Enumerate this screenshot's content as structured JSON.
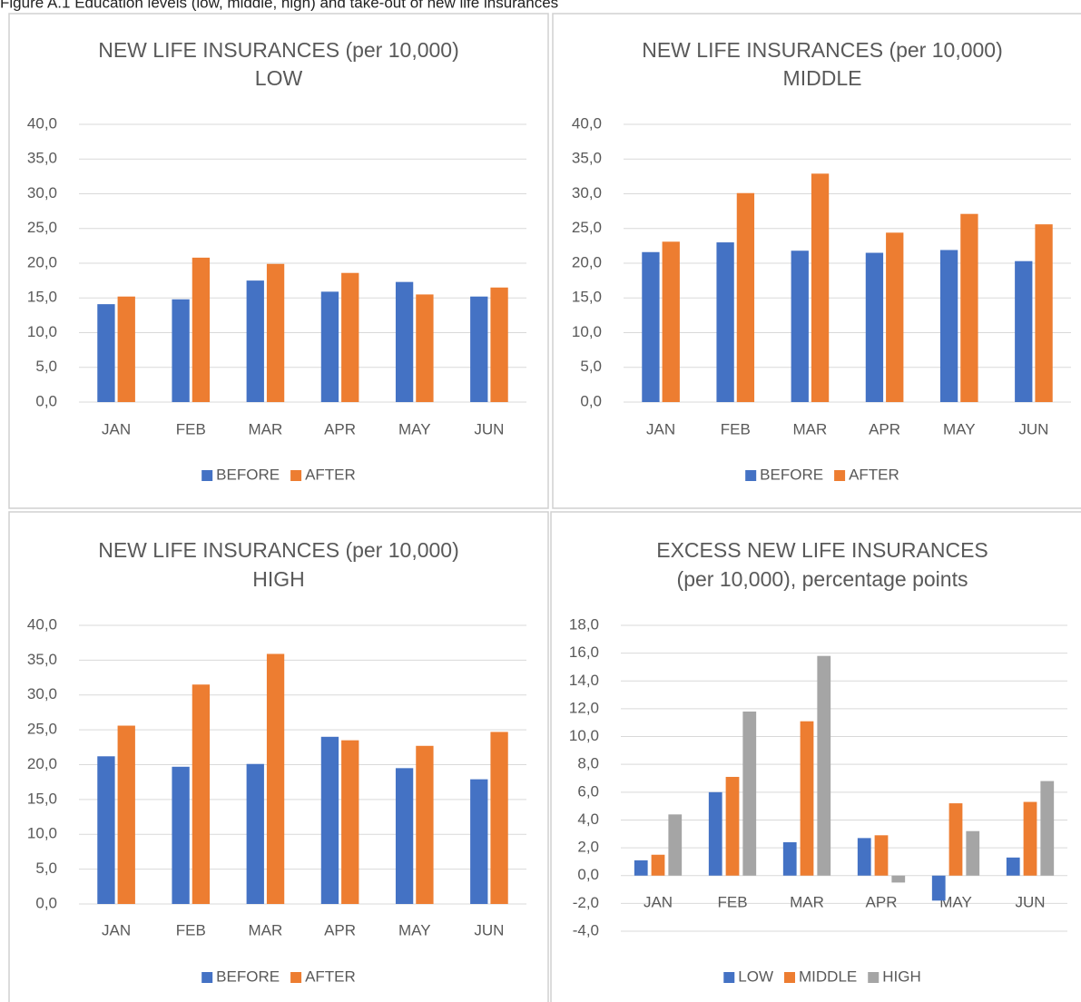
{
  "caption": "Figure A.1 Education levels (low, middle, high) and take-out of new life insurances",
  "chart_data": [
    {
      "type": "bar",
      "title": [
        "NEW LIFE INSURANCES (per 10,000)",
        "LOW"
      ],
      "categories": [
        "JAN",
        "FEB",
        "MAR",
        "APR",
        "MAY",
        "JUN"
      ],
      "series": [
        {
          "name": "BEFORE",
          "color": "#4472c4",
          "values": [
            14.1,
            14.8,
            17.5,
            15.9,
            17.3,
            15.2
          ]
        },
        {
          "name": "AFTER",
          "color": "#ed7d31",
          "values": [
            15.2,
            20.8,
            19.9,
            18.6,
            15.5,
            16.5
          ]
        }
      ],
      "ylim": [
        0,
        40
      ],
      "yticks": [
        {
          "value": 0,
          "label": "0,0"
        },
        {
          "value": 5,
          "label": "5,0"
        },
        {
          "value": 10,
          "label": "10,0"
        },
        {
          "value": 15,
          "label": "15,0"
        },
        {
          "value": 20,
          "label": "20,0"
        },
        {
          "value": 25,
          "label": "25,0"
        },
        {
          "value": 30,
          "label": "30,0"
        },
        {
          "value": 35,
          "label": "35,0"
        },
        {
          "value": 40,
          "label": "40,0"
        }
      ],
      "grid": true,
      "legend": "bottom"
    },
    {
      "type": "bar",
      "title": [
        "NEW LIFE INSURANCES (per 10,000)",
        "MIDDLE"
      ],
      "categories": [
        "JAN",
        "FEB",
        "MAR",
        "APR",
        "MAY",
        "JUN"
      ],
      "series": [
        {
          "name": "BEFORE",
          "color": "#4472c4",
          "values": [
            21.6,
            23.0,
            21.8,
            21.5,
            21.9,
            20.3
          ]
        },
        {
          "name": "AFTER",
          "color": "#ed7d31",
          "values": [
            23.1,
            30.1,
            32.9,
            24.4,
            27.1,
            25.6
          ]
        }
      ],
      "ylim": [
        0,
        40
      ],
      "yticks": [
        {
          "value": 0,
          "label": "0,0"
        },
        {
          "value": 5,
          "label": "5,0"
        },
        {
          "value": 10,
          "label": "10,0"
        },
        {
          "value": 15,
          "label": "15,0"
        },
        {
          "value": 20,
          "label": "20,0"
        },
        {
          "value": 25,
          "label": "25,0"
        },
        {
          "value": 30,
          "label": "30,0"
        },
        {
          "value": 35,
          "label": "35,0"
        },
        {
          "value": 40,
          "label": "40,0"
        }
      ],
      "grid": true,
      "legend": "bottom"
    },
    {
      "type": "bar",
      "title": [
        "NEW LIFE INSURANCES (per 10,000)",
        "HIGH"
      ],
      "categories": [
        "JAN",
        "FEB",
        "MAR",
        "APR",
        "MAY",
        "JUN"
      ],
      "series": [
        {
          "name": "BEFORE",
          "color": "#4472c4",
          "values": [
            21.2,
            19.7,
            20.1,
            24.0,
            19.5,
            17.9
          ]
        },
        {
          "name": "AFTER",
          "color": "#ed7d31",
          "values": [
            25.6,
            31.5,
            35.9,
            23.5,
            22.7,
            24.7
          ]
        }
      ],
      "ylim": [
        0,
        40
      ],
      "yticks": [
        {
          "value": 0,
          "label": "0,0"
        },
        {
          "value": 5,
          "label": "5,0"
        },
        {
          "value": 10,
          "label": "10,0"
        },
        {
          "value": 15,
          "label": "15,0"
        },
        {
          "value": 20,
          "label": "20,0"
        },
        {
          "value": 25,
          "label": "25,0"
        },
        {
          "value": 30,
          "label": "30,0"
        },
        {
          "value": 35,
          "label": "35,0"
        },
        {
          "value": 40,
          "label": "40,0"
        }
      ],
      "grid": true,
      "legend": "bottom"
    },
    {
      "type": "bar",
      "title": [
        "EXCESS NEW LIFE INSURANCES",
        "(per 10,000), percentage points"
      ],
      "categories": [
        "JAN",
        "FEB",
        "MAR",
        "APR",
        "MAY",
        "JUN"
      ],
      "series": [
        {
          "name": "LOW",
          "color": "#4472c4",
          "values": [
            1.1,
            6.0,
            2.4,
            2.7,
            -1.8,
            1.3
          ]
        },
        {
          "name": "MIDDLE",
          "color": "#ed7d31",
          "values": [
            1.5,
            7.1,
            11.1,
            2.9,
            5.2,
            5.3
          ]
        },
        {
          "name": "HIGH",
          "color": "#a5a5a5",
          "values": [
            4.4,
            11.8,
            15.8,
            -0.5,
            3.2,
            6.8
          ]
        }
      ],
      "ylim": [
        -4,
        18
      ],
      "yticks": [
        {
          "value": -4,
          "label": "-4,0"
        },
        {
          "value": -2,
          "label": "-2,0"
        },
        {
          "value": 0,
          "label": "0,0"
        },
        {
          "value": 2,
          "label": "2,0"
        },
        {
          "value": 4,
          "label": "4,0"
        },
        {
          "value": 6,
          "label": "6,0"
        },
        {
          "value": 8,
          "label": "8,0"
        },
        {
          "value": 10,
          "label": "10,0"
        },
        {
          "value": 12,
          "label": "12,0"
        },
        {
          "value": 14,
          "label": "14,0"
        },
        {
          "value": 16,
          "label": "16,0"
        },
        {
          "value": 18,
          "label": "18,0"
        }
      ],
      "grid": true,
      "legend": "bottom"
    }
  ]
}
